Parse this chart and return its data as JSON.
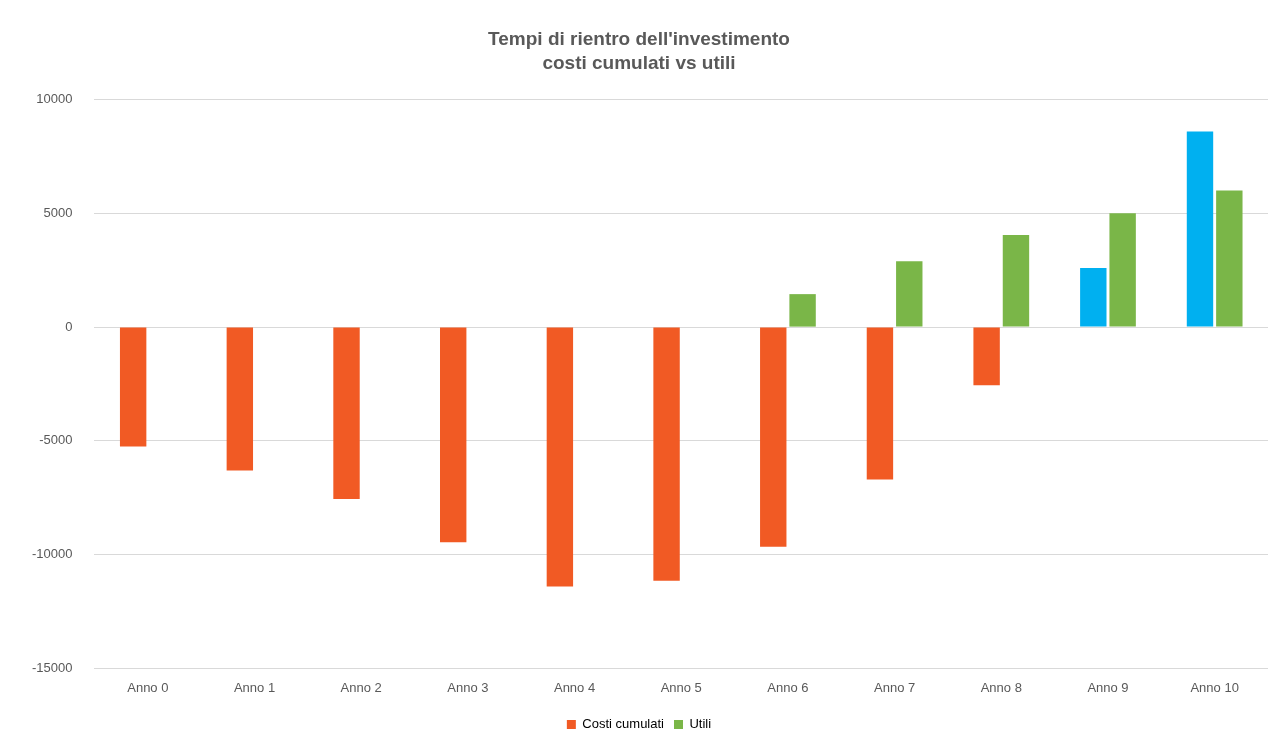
{
  "chart_data": {
    "type": "bar",
    "title": "Tempi di rientro dell'investimento",
    "subtitle": "costi cumulati vs utili",
    "categories": [
      "Anno 0",
      "Anno 1",
      "Anno 2",
      "Anno 3",
      "Anno 4",
      "Anno 5",
      "Anno 6",
      "Anno 7",
      "Anno 8",
      "Anno 9",
      "Anno 10"
    ],
    "series": [
      {
        "name": "Costi cumulati",
        "color": "#f15a24",
        "colors": [
          "#f15a24",
          "#f15a24",
          "#f15a24",
          "#f15a24",
          "#f15a24",
          "#f15a24",
          "#f15a24",
          "#f15a24",
          "#f15a24",
          "#00b0f0",
          "#00b0f0"
        ],
        "values": [
          -5250,
          -6300,
          -7550,
          -9450,
          -11400,
          -11150,
          -9650,
          -6700,
          -2550,
          2600,
          8600
        ]
      },
      {
        "name": "Utili",
        "color": "#7ab648",
        "values": [
          0,
          0,
          0,
          0,
          0,
          0,
          1450,
          2900,
          4050,
          5000,
          6000
        ]
      }
    ],
    "ylim": [
      -15000,
      10000
    ],
    "yticks": [
      -15000,
      -10000,
      -5000,
      0,
      5000,
      10000
    ],
    "grid": "y",
    "legend": "bottom"
  }
}
